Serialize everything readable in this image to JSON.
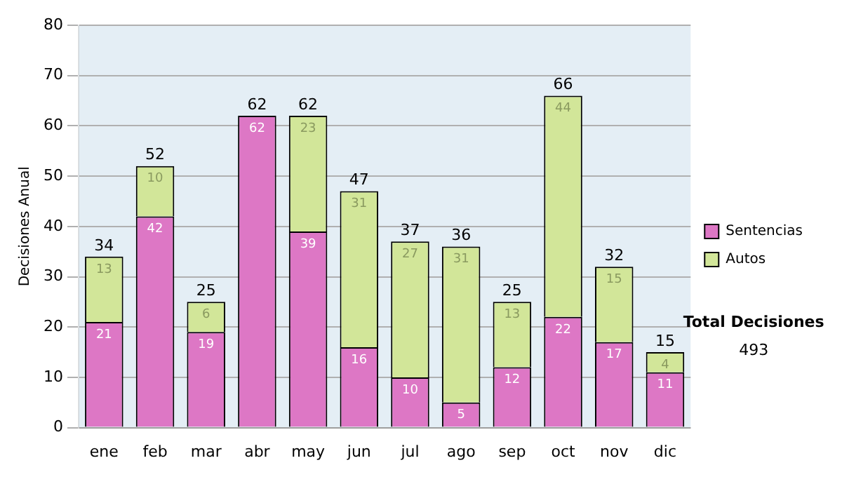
{
  "chart_data": {
    "type": "bar",
    "stacked": true,
    "categories": [
      "ene",
      "feb",
      "mar",
      "abr",
      "may",
      "jun",
      "jul",
      "ago",
      "sep",
      "oct",
      "nov",
      "dic"
    ],
    "series": [
      {
        "name": "Sentencias",
        "color": "#dd77c5",
        "values": [
          21,
          42,
          19,
          62,
          39,
          16,
          10,
          5,
          12,
          22,
          17,
          11
        ],
        "value_labels": [
          "21",
          "42",
          "19",
          "62",
          "39",
          "16",
          "10",
          "5",
          "12",
          "22",
          "17",
          "11"
        ]
      },
      {
        "name": "Autos",
        "color": "#d2e699",
        "values": [
          13,
          10,
          6,
          0,
          23,
          31,
          27,
          31,
          13,
          44,
          15,
          4
        ],
        "value_labels": [
          "13",
          "10",
          "6",
          null,
          "23",
          "31",
          "27",
          "31",
          "13",
          "44",
          "15",
          "4"
        ]
      }
    ],
    "totals": [
      "34",
      "52",
      "25",
      "62",
      "62",
      "47",
      "37",
      "36",
      "25",
      "66",
      "32",
      "15"
    ],
    "ylabel": "Decisiones Anual",
    "ylim": [
      0,
      80
    ],
    "yticks": [
      0,
      10,
      20,
      30,
      40,
      50,
      60,
      70,
      80
    ],
    "grid": "y",
    "legend": "right",
    "annotations": [
      "Total Decisiones",
      "493"
    ]
  }
}
